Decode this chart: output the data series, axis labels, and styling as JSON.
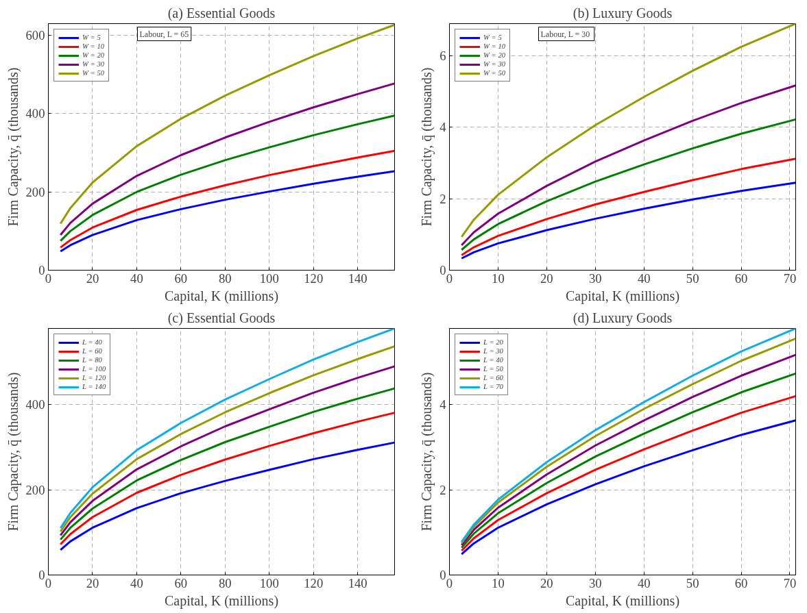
{
  "chart_data": [
    {
      "type": "line",
      "title": "(a) Essential Goods",
      "xlabel": "Capital, K (millions)",
      "ylabel": "Firm Capacity, q̄ (thousands)",
      "annotations": [
        "Labour, L = 65"
      ],
      "xlim": [
        0,
        156.7
      ],
      "ylim": [
        0,
        630
      ],
      "xticks": [
        0,
        20,
        40,
        60,
        80,
        100,
        120,
        140
      ],
      "yticks": [
        0,
        200,
        400,
        600
      ],
      "grid": true,
      "legend": "top left",
      "x": [
        5.5,
        10,
        20,
        40,
        60,
        80,
        100,
        120,
        140,
        156.7
      ],
      "series": [
        {
          "name": "W = 5",
          "color": "#0000ff",
          "values": [
            48,
            64,
            90,
            128,
            156,
            180,
            201,
            221,
            239,
            253
          ]
        },
        {
          "name": "W = 10",
          "color": "#ff0000",
          "values": [
            58,
            77,
            109,
            154,
            188,
            217,
            243,
            266,
            288,
            305
          ]
        },
        {
          "name": "W = 20",
          "color": "#008000",
          "values": [
            75,
            100,
            141,
            200,
            244,
            281,
            314,
            345,
            373,
            395
          ]
        },
        {
          "name": "W = 30",
          "color": "#800080",
          "values": [
            90,
            121,
            170,
            241,
            294,
            339,
            379,
            416,
            450,
            477
          ]
        },
        {
          "name": "W = 50",
          "color": "#999900",
          "values": [
            119,
            159,
            224,
            317,
            387,
            446,
            498,
            547,
            592,
            627
          ]
        }
      ]
    },
    {
      "type": "line",
      "title": "(b) Luxury Goods",
      "xlabel": "Capital, K (millions)",
      "ylabel": "Firm Capacity, q̄ (thousands)",
      "annotations": [
        "Labour, L =  30"
      ],
      "xlim": [
        0,
        71.2
      ],
      "ylim": [
        0,
        6.9
      ],
      "xticks": [
        0,
        10,
        20,
        30,
        40,
        50,
        60,
        70
      ],
      "yticks": [
        0,
        2,
        4,
        6
      ],
      "grid": true,
      "legend": "top left",
      "x": [
        2.5,
        5,
        10,
        20,
        30,
        40,
        50,
        60,
        71.2
      ],
      "series": [
        {
          "name": "W = 5",
          "color": "#0000ff",
          "values": [
            0.33,
            0.5,
            0.75,
            1.12,
            1.44,
            1.72,
            1.98,
            2.22,
            2.45
          ]
        },
        {
          "name": "W = 10",
          "color": "#ff0000",
          "values": [
            0.42,
            0.64,
            0.96,
            1.43,
            1.84,
            2.19,
            2.52,
            2.83,
            3.12
          ]
        },
        {
          "name": "W = 20",
          "color": "#008000",
          "values": [
            0.57,
            0.86,
            1.29,
            1.93,
            2.48,
            2.96,
            3.41,
            3.82,
            4.22
          ]
        },
        {
          "name": "W = 30",
          "color": "#800080",
          "values": [
            0.7,
            1.06,
            1.58,
            2.36,
            3.04,
            3.63,
            4.18,
            4.68,
            5.17
          ]
        },
        {
          "name": "W = 50",
          "color": "#999900",
          "values": [
            0.93,
            1.41,
            2.11,
            3.16,
            4.06,
            4.85,
            5.58,
            6.25,
            6.9
          ]
        }
      ]
    },
    {
      "type": "line",
      "title": "(c) Essential Goods",
      "xlabel": "Capital, K (millions)",
      "ylabel": "Firm Capacity, q̄ (thousands)",
      "xlim": [
        0,
        156.7
      ],
      "ylim": [
        0,
        579
      ],
      "xticks": [
        0,
        20,
        40,
        60,
        80,
        100,
        120,
        140
      ],
      "yticks": [
        0,
        200,
        400
      ],
      "grid": true,
      "legend": "top left",
      "x": [
        5.5,
        10,
        20,
        40,
        60,
        80,
        100,
        120,
        140,
        156.7
      ],
      "series": [
        {
          "name": "L = 40",
          "color": "#0000ff",
          "values": [
            59,
            79,
            111,
            157,
            192,
            221,
            247,
            272,
            294,
            311
          ]
        },
        {
          "name": "L = 60",
          "color": "#ff0000",
          "values": [
            72,
            96,
            136,
            193,
            235,
            271,
            303,
            333,
            360,
            381
          ]
        },
        {
          "name": "L = 80",
          "color": "#008000",
          "values": [
            83,
            111,
            156,
            222,
            270,
            312,
            348,
            383,
            414,
            438
          ]
        },
        {
          "name": "L = 100",
          "color": "#800080",
          "values": [
            93,
            124,
            174,
            248,
            302,
            349,
            389,
            428,
            463,
            490
          ]
        },
        {
          "name": "L = 120",
          "color": "#999900",
          "values": [
            102,
            136,
            191,
            272,
            331,
            382,
            427,
            469,
            507,
            537
          ]
        },
        {
          "name": "L = 140",
          "color": "#10aee8",
          "values": [
            110,
            146,
            206,
            293,
            357,
            412,
            460,
            506,
            547,
            579
          ]
        }
      ]
    },
    {
      "type": "line",
      "title": "(d) Luxury Goods",
      "xlabel": "Capital, K (millions)",
      "ylabel": "Firm Capacity, q̄ (thousands)",
      "xlim": [
        0,
        71.2
      ],
      "ylim": [
        0,
        5.79
      ],
      "xticks": [
        0,
        10,
        20,
        30,
        40,
        50,
        60,
        70
      ],
      "yticks": [
        0,
        2,
        4
      ],
      "grid": true,
      "legend": "top left",
      "x": [
        2.5,
        5,
        10,
        20,
        30,
        40,
        50,
        60,
        71.2
      ],
      "series": [
        {
          "name": "L = 20",
          "color": "#0000ff",
          "values": [
            0.49,
            0.74,
            1.11,
            1.66,
            2.13,
            2.55,
            2.93,
            3.29,
            3.63
          ]
        },
        {
          "name": "L = 30",
          "color": "#ff0000",
          "values": [
            0.57,
            0.86,
            1.29,
            1.92,
            2.47,
            2.95,
            3.39,
            3.81,
            4.2
          ]
        },
        {
          "name": "L = 40",
          "color": "#008000",
          "values": [
            0.64,
            0.97,
            1.45,
            2.16,
            2.78,
            3.32,
            3.82,
            4.29,
            4.73
          ]
        },
        {
          "name": "L = 50",
          "color": "#800080",
          "values": [
            0.7,
            1.06,
            1.58,
            2.36,
            3.04,
            3.63,
            4.18,
            4.68,
            5.17
          ]
        },
        {
          "name": "L = 60",
          "color": "#999900",
          "values": [
            0.75,
            1.13,
            1.7,
            2.54,
            3.26,
            3.9,
            4.48,
            5.03,
            5.55
          ]
        },
        {
          "name": "L = 70",
          "color": "#10aee8",
          "values": [
            0.78,
            1.18,
            1.77,
            2.65,
            3.4,
            4.06,
            4.68,
            5.25,
            5.79
          ]
        }
      ]
    }
  ]
}
